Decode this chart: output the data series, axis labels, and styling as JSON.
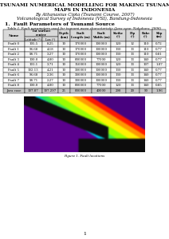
{
  "title_line1": "STUDY ON TSUNAMI NUMERICAL MODELLING FOR MAKING TSUNAMI HAZARD",
  "title_line2": "MAPS IN INDONESIA",
  "author": "By Athanasius Cipta (Tsunami Course, 2007)",
  "affiliation": "Volcanological Survey of Indonesia (VSI), Bandung-Indonesia",
  "section": "1.  Fault Parameters of Tsunami Source",
  "table_caption": "Table 1. Fault parameters used for tsunami wave characteristic (Java case: Nakahara, 2006)",
  "header_row1": [
    "Name",
    "lat surface\ncenter",
    "",
    "Depth\n(km)",
    "Fault\nLength (m)",
    "Fault\nWidth (m)",
    "Strike\n(°)",
    "Dip\n(°)",
    "Rake\n(°)",
    "Slip\n(m)"
  ],
  "header_row2": [
    "",
    "Latitude (°)",
    "Lon (°)",
    "",
    "",
    "",
    "",
    "",
    "",
    ""
  ],
  "rows": [
    [
      "Fault 0",
      "105.5",
      "8.25",
      "10",
      "170000",
      "100000",
      "120",
      "12",
      "110",
      "0.72"
    ],
    [
      "Fault 1",
      "96.68",
      "4.18",
      "10",
      "170000",
      "100000",
      "130",
      "13",
      "110",
      "0.77"
    ],
    [
      "Fault 2",
      "98.71",
      "3.27",
      "10",
      "170000",
      "100000",
      "130",
      "13",
      "110",
      "0.81"
    ],
    [
      "Fault 3",
      "100.0",
      "4.00",
      "10",
      "800000",
      "77000",
      "120",
      "13",
      "140",
      "0.77"
    ],
    [
      "Fault 4",
      "101.1",
      "3.71",
      "10",
      "150000",
      "100000",
      "120",
      "13",
      "107",
      "1.07"
    ],
    [
      "Fault 5",
      "102.13",
      "4.21",
      "10",
      "300000",
      "100000",
      "130",
      "13",
      "140",
      "0.77"
    ],
    [
      "Fault 6",
      "96.68",
      "2.36",
      "10",
      "300000",
      "100000",
      "130",
      "13",
      "140",
      "0.77"
    ],
    [
      "Fault 7",
      "98.71",
      "2.27",
      "10",
      "300000",
      "100000",
      "130",
      "13",
      "140",
      "0.77"
    ],
    [
      "Fault 8",
      "100.0",
      "4.00",
      "10",
      "800000",
      "77000",
      "120",
      "13",
      "140",
      "0.85"
    ],
    [
      "Java case",
      "107.87",
      "107.297",
      "25",
      "800000",
      "40000",
      "298",
      "20",
      "90",
      "1.96"
    ]
  ],
  "figure_caption": "Figure 1. Fault locations",
  "bg_color": "#ffffff",
  "title_fontsize": 4.5,
  "table_fontsize": 3.0,
  "page_num": "1"
}
